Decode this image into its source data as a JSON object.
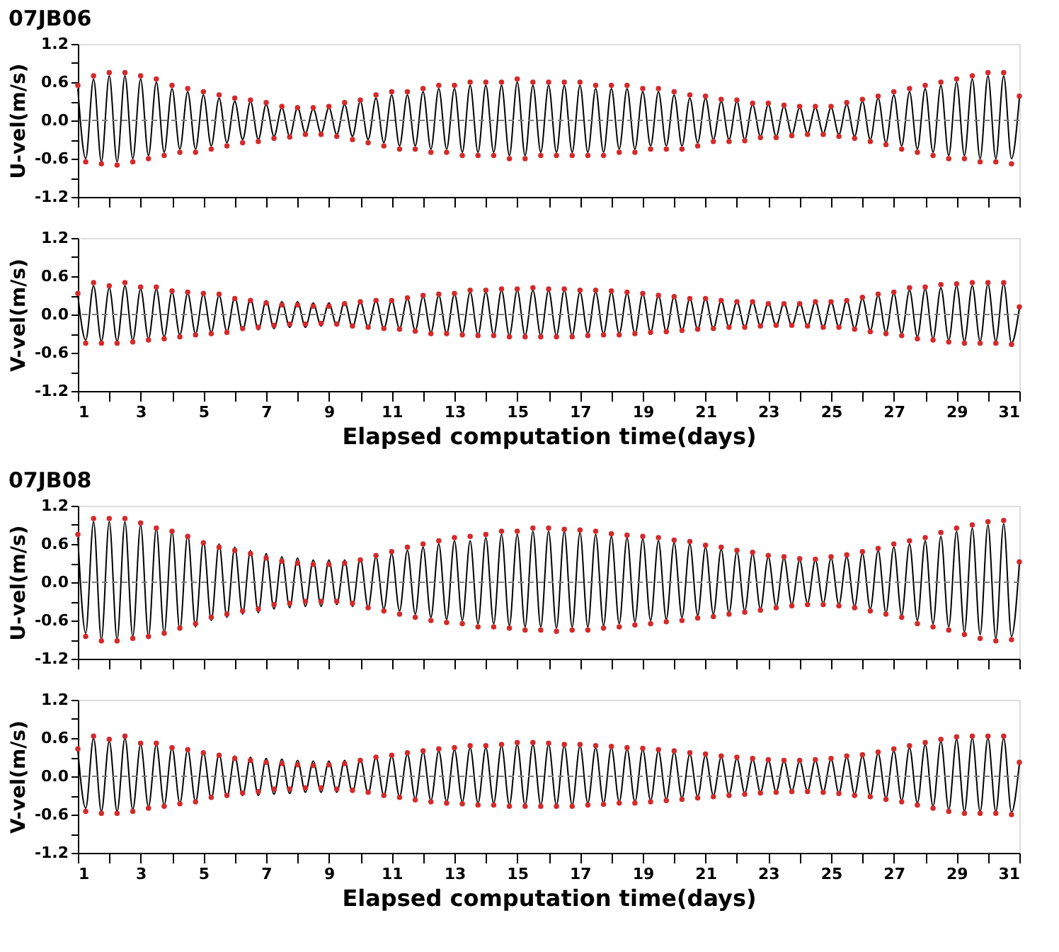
{
  "chart_data": [
    {
      "type": "line",
      "title": "07JB06",
      "ylabel": "U-vel(m/s)",
      "tick_labels": "y",
      "grid": false,
      "x": [
        1,
        1.25,
        1.5,
        1.75,
        2,
        2.25,
        2.5,
        2.75,
        3,
        3.25,
        3.5,
        3.75,
        4,
        4.25,
        4.5,
        4.75,
        5,
        5.25,
        5.5,
        5.75,
        6,
        6.25,
        6.5,
        6.75,
        7,
        7.25,
        7.5,
        7.75,
        8,
        8.25,
        8.5,
        8.75,
        9,
        9.25,
        9.5,
        9.75,
        10,
        10.25,
        10.5,
        10.75,
        11,
        11.25,
        11.5,
        11.75,
        12,
        12.25,
        12.5,
        12.75,
        13,
        13.25,
        13.5,
        13.75,
        14,
        14.25,
        14.5,
        14.75,
        15,
        15.25,
        15.5,
        15.75,
        16,
        16.25,
        16.5,
        16.75,
        17,
        17.25,
        17.5,
        17.75,
        18,
        18.25,
        18.5,
        18.75,
        19,
        19.25,
        19.5,
        19.75,
        20,
        20.25,
        20.5,
        20.75,
        21,
        21.25,
        21.5,
        21.75,
        22,
        22.25,
        22.5,
        22.75,
        23,
        23.25,
        23.5,
        23.75,
        24,
        24.25,
        24.5,
        24.75,
        25,
        25.25,
        25.5,
        25.75,
        26,
        26.25,
        26.5,
        26.75,
        27,
        27.25,
        27.5,
        27.75,
        28,
        28.25,
        28.5,
        28.75,
        29,
        29.25,
        29.5,
        29.75,
        30,
        30.25,
        30.5,
        30.75,
        31
      ],
      "xlim": [
        1,
        31
      ],
      "xticks": [
        1,
        {
          "value": 2,
          "label": null
        },
        3,
        {
          "value": 4,
          "label": null
        },
        5,
        {
          "value": 6,
          "label": null
        },
        7,
        {
          "value": 8,
          "label": null
        },
        9,
        {
          "value": 10,
          "label": null
        },
        11,
        {
          "value": 12,
          "label": null
        },
        13,
        {
          "value": 14,
          "label": null
        },
        15,
        {
          "value": 16,
          "label": null
        },
        17,
        {
          "value": 18,
          "label": null
        },
        19,
        {
          "value": 20,
          "label": null
        },
        21,
        {
          "value": 22,
          "label": null
        },
        23,
        {
          "value": 24,
          "label": null
        },
        25,
        {
          "value": 26,
          "label": null
        },
        27,
        {
          "value": 28,
          "label": null
        },
        29,
        {
          "value": 30,
          "label": null
        },
        31
      ],
      "ylim": [
        -1.2,
        1.2
      ],
      "yticks": [
        -1.2,
        {
          "value": -0.9,
          "label": null
        },
        -0.6,
        {
          "value": -0.3,
          "label": null
        },
        {
          "value": 0,
          "label": "0.0"
        },
        {
          "value": 0.3,
          "label": null
        },
        0.6,
        {
          "value": 0.9,
          "label": null
        },
        1.2
      ],
      "ref_lines": [
        {
          "axis": "y",
          "value": 0,
          "color": "#808080",
          "line_style": "dashed"
        }
      ],
      "series": [
        {
          "color": "#000000",
          "values": [
            0.5,
            -0.6,
            0.65,
            -0.65,
            0.7,
            -0.65,
            0.7,
            -0.6,
            0.65,
            -0.55,
            0.6,
            -0.5,
            0.5,
            -0.45,
            0.45,
            -0.45,
            0.4,
            -0.4,
            0.35,
            -0.35,
            0.3,
            -0.3,
            0.3,
            -0.3,
            0.25,
            -0.25,
            0.2,
            -0.25,
            0.2,
            -0.2,
            0.18,
            -0.2,
            0.2,
            -0.22,
            0.25,
            -0.25,
            0.3,
            -0.3,
            0.35,
            -0.35,
            0.4,
            -0.4,
            0.4,
            -0.4,
            0.45,
            -0.45,
            0.5,
            -0.45,
            0.5,
            -0.5,
            0.55,
            -0.5,
            0.55,
            -0.5,
            0.55,
            -0.55,
            0.6,
            -0.55,
            0.55,
            -0.5,
            0.55,
            -0.5,
            0.55,
            -0.5,
            0.55,
            -0.5,
            0.5,
            -0.5,
            0.5,
            -0.45,
            0.5,
            -0.45,
            0.45,
            -0.4,
            0.45,
            -0.4,
            0.4,
            -0.4,
            0.35,
            -0.35,
            0.35,
            -0.3,
            0.3,
            -0.3,
            0.3,
            -0.3,
            0.25,
            -0.25,
            0.25,
            -0.25,
            0.22,
            -0.22,
            0.2,
            -0.2,
            0.2,
            -0.2,
            0.2,
            -0.22,
            0.25,
            -0.25,
            0.3,
            -0.3,
            0.35,
            -0.35,
            0.4,
            -0.4,
            0.45,
            -0.45,
            0.5,
            -0.5,
            0.55,
            -0.55,
            0.6,
            -0.55,
            0.65,
            -0.6,
            0.7,
            -0.6,
            0.7,
            -0.6,
            0.35
          ]
        },
        {
          "type": "scatter",
          "color": "#d42a2a",
          "values": [
            0.55,
            -0.65,
            0.7,
            -0.68,
            0.75,
            -0.7,
            0.75,
            -0.65,
            0.7,
            -0.6,
            0.65,
            -0.55,
            0.55,
            -0.5,
            0.5,
            -0.5,
            0.45,
            -0.45,
            0.4,
            -0.4,
            0.35,
            -0.35,
            0.32,
            -0.33,
            0.28,
            -0.28,
            0.22,
            -0.26,
            0.2,
            -0.22,
            0.2,
            -0.22,
            0.22,
            -0.25,
            0.28,
            -0.3,
            0.32,
            -0.35,
            0.4,
            -0.4,
            0.45,
            -0.45,
            0.45,
            -0.45,
            0.5,
            -0.5,
            0.55,
            -0.5,
            0.55,
            -0.55,
            0.6,
            -0.55,
            0.6,
            -0.55,
            0.6,
            -0.6,
            0.65,
            -0.6,
            0.6,
            -0.55,
            0.6,
            -0.55,
            0.6,
            -0.55,
            0.6,
            -0.55,
            0.55,
            -0.55,
            0.55,
            -0.5,
            0.55,
            -0.5,
            0.5,
            -0.45,
            0.5,
            -0.45,
            0.45,
            -0.45,
            0.4,
            -0.4,
            0.38,
            -0.33,
            0.33,
            -0.33,
            0.32,
            -0.32,
            0.27,
            -0.27,
            0.27,
            -0.27,
            0.24,
            -0.24,
            0.22,
            -0.22,
            0.22,
            -0.22,
            0.22,
            -0.25,
            0.28,
            -0.28,
            0.33,
            -0.33,
            0.38,
            -0.38,
            0.45,
            -0.45,
            0.5,
            -0.5,
            0.55,
            -0.55,
            0.6,
            -0.6,
            0.65,
            -0.6,
            0.7,
            -0.65,
            0.75,
            -0.65,
            0.75,
            -0.68,
            0.38
          ]
        }
      ]
    },
    {
      "type": "line",
      "xlabel": "Elapsed computation time(days)",
      "ylabel": "V-vel(m/s)",
      "grid": false,
      "x": [
        1,
        1.25,
        1.5,
        1.75,
        2,
        2.25,
        2.5,
        2.75,
        3,
        3.25,
        3.5,
        3.75,
        4,
        4.25,
        4.5,
        4.75,
        5,
        5.25,
        5.5,
        5.75,
        6,
        6.25,
        6.5,
        6.75,
        7,
        7.25,
        7.5,
        7.75,
        8,
        8.25,
        8.5,
        8.75,
        9,
        9.25,
        9.5,
        9.75,
        10,
        10.25,
        10.5,
        10.75,
        11,
        11.25,
        11.5,
        11.75,
        12,
        12.25,
        12.5,
        12.75,
        13,
        13.25,
        13.5,
        13.75,
        14,
        14.25,
        14.5,
        14.75,
        15,
        15.25,
        15.5,
        15.75,
        16,
        16.25,
        16.5,
        16.75,
        17,
        17.25,
        17.5,
        17.75,
        18,
        18.25,
        18.5,
        18.75,
        19,
        19.25,
        19.5,
        19.75,
        20,
        20.25,
        20.5,
        20.75,
        21,
        21.25,
        21.5,
        21.75,
        22,
        22.25,
        22.5,
        22.75,
        23,
        23.25,
        23.5,
        23.75,
        24,
        24.25,
        24.5,
        24.75,
        25,
        25.25,
        25.5,
        25.75,
        26,
        26.25,
        26.5,
        26.75,
        27,
        27.25,
        27.5,
        27.75,
        28,
        28.25,
        28.5,
        28.75,
        29,
        29.25,
        29.5,
        29.75,
        30,
        30.25,
        30.5,
        30.75,
        31
      ],
      "xlim": [
        1,
        31
      ],
      "xticks": [
        1,
        {
          "value": 2,
          "label": null
        },
        3,
        {
          "value": 4,
          "label": null
        },
        5,
        {
          "value": 6,
          "label": null
        },
        7,
        {
          "value": 8,
          "label": null
        },
        9,
        {
          "value": 10,
          "label": null
        },
        11,
        {
          "value": 12,
          "label": null
        },
        13,
        {
          "value": 14,
          "label": null
        },
        15,
        {
          "value": 16,
          "label": null
        },
        17,
        {
          "value": 18,
          "label": null
        },
        19,
        {
          "value": 20,
          "label": null
        },
        21,
        {
          "value": 22,
          "label": null
        },
        23,
        {
          "value": 24,
          "label": null
        },
        25,
        {
          "value": 26,
          "label": null
        },
        27,
        {
          "value": 28,
          "label": null
        },
        29,
        {
          "value": 30,
          "label": null
        },
        31
      ],
      "ylim": [
        -1.2,
        1.2
      ],
      "yticks": [
        -1.2,
        {
          "value": -0.9,
          "label": null
        },
        -0.6,
        {
          "value": -0.3,
          "label": null
        },
        {
          "value": 0,
          "label": "0.0"
        },
        {
          "value": 0.3,
          "label": null
        },
        0.6,
        {
          "value": 0.9,
          "label": null
        },
        1.2
      ],
      "ref_lines": [
        {
          "axis": "y",
          "value": 0,
          "color": "#808080",
          "line_style": "dashed"
        }
      ],
      "series": [
        {
          "color": "#000000",
          "values": [
            0.3,
            -0.4,
            0.45,
            -0.42,
            0.42,
            -0.42,
            0.45,
            -0.4,
            0.4,
            -0.38,
            0.4,
            -0.35,
            0.35,
            -0.32,
            0.33,
            -0.3,
            0.32,
            -0.28,
            0.3,
            -0.27,
            0.27,
            -0.25,
            0.25,
            -0.24,
            0.22,
            -0.22,
            0.2,
            -0.2,
            0.2,
            -0.2,
            0.18,
            -0.18,
            0.18,
            -0.18,
            0.2,
            -0.2,
            0.2,
            -0.2,
            0.22,
            -0.22,
            0.22,
            -0.22,
            0.25,
            -0.25,
            0.28,
            -0.28,
            0.3,
            -0.3,
            0.32,
            -0.3,
            0.35,
            -0.32,
            0.35,
            -0.32,
            0.38,
            -0.33,
            0.38,
            -0.33,
            0.38,
            -0.33,
            0.38,
            -0.33,
            0.38,
            -0.33,
            0.35,
            -0.3,
            0.35,
            -0.3,
            0.35,
            -0.3,
            0.33,
            -0.3,
            0.32,
            -0.28,
            0.3,
            -0.27,
            0.28,
            -0.25,
            0.25,
            -0.23,
            0.25,
            -0.22,
            0.22,
            -0.2,
            0.2,
            -0.2,
            0.2,
            -0.18,
            0.18,
            -0.18,
            0.18,
            -0.18,
            0.18,
            -0.18,
            0.2,
            -0.2,
            0.2,
            -0.2,
            0.22,
            -0.22,
            0.25,
            -0.25,
            0.3,
            -0.28,
            0.33,
            -0.3,
            0.38,
            -0.35,
            0.4,
            -0.38,
            0.42,
            -0.4,
            0.45,
            -0.42,
            0.45,
            -0.42,
            0.48,
            -0.42,
            0.48,
            -0.45,
            0.1
          ]
        },
        {
          "type": "scatter",
          "color": "#d42a2a",
          "values": [
            0.33,
            -0.45,
            0.5,
            -0.45,
            0.45,
            -0.45,
            0.5,
            -0.43,
            0.43,
            -0.4,
            0.43,
            -0.38,
            0.37,
            -0.35,
            0.35,
            -0.32,
            0.33,
            -0.3,
            0.32,
            -0.28,
            0.25,
            -0.22,
            0.22,
            -0.2,
            0.18,
            -0.17,
            0.15,
            -0.15,
            0.15,
            -0.15,
            0.13,
            -0.14,
            0.13,
            -0.15,
            0.17,
            -0.18,
            0.2,
            -0.2,
            0.22,
            -0.22,
            0.22,
            -0.23,
            0.26,
            -0.26,
            0.3,
            -0.3,
            0.32,
            -0.3,
            0.33,
            -0.32,
            0.38,
            -0.33,
            0.38,
            -0.33,
            0.4,
            -0.35,
            0.4,
            -0.35,
            0.42,
            -0.35,
            0.4,
            -0.35,
            0.4,
            -0.35,
            0.38,
            -0.33,
            0.38,
            -0.32,
            0.37,
            -0.32,
            0.35,
            -0.3,
            0.33,
            -0.28,
            0.3,
            -0.27,
            0.28,
            -0.25,
            0.25,
            -0.23,
            0.25,
            -0.22,
            0.22,
            -0.2,
            0.2,
            -0.2,
            0.2,
            -0.18,
            0.17,
            -0.17,
            0.17,
            -0.17,
            0.17,
            -0.18,
            0.2,
            -0.2,
            0.2,
            -0.2,
            0.22,
            -0.23,
            0.27,
            -0.27,
            0.32,
            -0.3,
            0.35,
            -0.33,
            0.42,
            -0.38,
            0.43,
            -0.4,
            0.47,
            -0.43,
            0.48,
            -0.45,
            0.5,
            -0.45,
            0.5,
            -0.45,
            0.5,
            -0.47,
            0.12
          ]
        }
      ]
    },
    {
      "type": "line",
      "title": "07JB08",
      "ylabel": "U-vel(m/s)",
      "tick_labels": "y",
      "grid": false,
      "x": [
        1,
        1.25,
        1.5,
        1.75,
        2,
        2.25,
        2.5,
        2.75,
        3,
        3.25,
        3.5,
        3.75,
        4,
        4.25,
        4.5,
        4.75,
        5,
        5.25,
        5.5,
        5.75,
        6,
        6.25,
        6.5,
        6.75,
        7,
        7.25,
        7.5,
        7.75,
        8,
        8.25,
        8.5,
        8.75,
        9,
        9.25,
        9.5,
        9.75,
        10,
        10.25,
        10.5,
        10.75,
        11,
        11.25,
        11.5,
        11.75,
        12,
        12.25,
        12.5,
        12.75,
        13,
        13.25,
        13.5,
        13.75,
        14,
        14.25,
        14.5,
        14.75,
        15,
        15.25,
        15.5,
        15.75,
        16,
        16.25,
        16.5,
        16.75,
        17,
        17.25,
        17.5,
        17.75,
        18,
        18.25,
        18.5,
        18.75,
        19,
        19.25,
        19.5,
        19.75,
        20,
        20.25,
        20.5,
        20.75,
        21,
        21.25,
        21.5,
        21.75,
        22,
        22.25,
        22.5,
        22.75,
        23,
        23.25,
        23.5,
        23.75,
        24,
        24.25,
        24.5,
        24.75,
        25,
        25.25,
        25.5,
        25.75,
        26,
        26.25,
        26.5,
        26.75,
        27,
        27.25,
        27.5,
        27.75,
        28,
        28.25,
        28.5,
        28.75,
        29,
        29.25,
        29.5,
        29.75,
        30,
        30.25,
        30.5,
        30.75,
        31
      ],
      "xlim": [
        1,
        31
      ],
      "xticks": [
        1,
        {
          "value": 2,
          "label": null
        },
        3,
        {
          "value": 4,
          "label": null
        },
        5,
        {
          "value": 6,
          "label": null
        },
        7,
        {
          "value": 8,
          "label": null
        },
        9,
        {
          "value": 10,
          "label": null
        },
        11,
        {
          "value": 12,
          "label": null
        },
        13,
        {
          "value": 14,
          "label": null
        },
        15,
        {
          "value": 16,
          "label": null
        },
        17,
        {
          "value": 18,
          "label": null
        },
        19,
        {
          "value": 20,
          "label": null
        },
        21,
        {
          "value": 22,
          "label": null
        },
        23,
        {
          "value": 24,
          "label": null
        },
        25,
        {
          "value": 26,
          "label": null
        },
        27,
        {
          "value": 28,
          "label": null
        },
        29,
        {
          "value": 30,
          "label": null
        },
        31
      ],
      "ylim": [
        -1.2,
        1.2
      ],
      "yticks": [
        -1.2,
        {
          "value": -0.9,
          "label": null
        },
        -0.6,
        {
          "value": -0.3,
          "label": null
        },
        {
          "value": 0,
          "label": "0.0"
        },
        {
          "value": 0.3,
          "label": null
        },
        0.6,
        {
          "value": 0.9,
          "label": null
        },
        1.2
      ],
      "ref_lines": [
        {
          "axis": "y",
          "value": 0,
          "color": "#808080",
          "line_style": "dashed"
        }
      ],
      "series": [
        {
          "color": "#000000",
          "values": [
            0.7,
            -0.8,
            0.95,
            -0.9,
            0.95,
            -0.9,
            0.95,
            -0.85,
            0.9,
            -0.85,
            0.85,
            -0.8,
            0.8,
            -0.75,
            0.75,
            -0.7,
            0.65,
            -0.6,
            0.6,
            -0.55,
            0.55,
            -0.5,
            0.5,
            -0.48,
            0.45,
            -0.42,
            0.4,
            -0.4,
            0.38,
            -0.38,
            0.35,
            -0.38,
            0.35,
            -0.35,
            0.35,
            -0.38,
            0.38,
            -0.4,
            0.4,
            -0.42,
            0.45,
            -0.45,
            0.5,
            -0.5,
            0.55,
            -0.55,
            0.6,
            -0.58,
            0.65,
            -0.6,
            0.65,
            -0.65,
            0.7,
            -0.65,
            0.75,
            -0.68,
            0.75,
            -0.7,
            0.8,
            -0.7,
            0.8,
            -0.72,
            0.8,
            -0.7,
            0.78,
            -0.7,
            0.75,
            -0.68,
            0.72,
            -0.65,
            0.7,
            -0.62,
            0.68,
            -0.6,
            0.65,
            -0.58,
            0.62,
            -0.55,
            0.6,
            -0.52,
            0.55,
            -0.5,
            0.52,
            -0.48,
            0.48,
            -0.45,
            0.45,
            -0.42,
            0.4,
            -0.38,
            0.38,
            -0.35,
            0.35,
            -0.33,
            0.35,
            -0.33,
            0.38,
            -0.35,
            0.4,
            -0.38,
            0.45,
            -0.42,
            0.5,
            -0.48,
            0.55,
            -0.52,
            0.6,
            -0.6,
            0.65,
            -0.65,
            0.72,
            -0.7,
            0.8,
            -0.78,
            0.85,
            -0.82,
            0.9,
            -0.88,
            0.92,
            -0.85,
            0.3
          ]
        },
        {
          "type": "scatter",
          "color": "#d42a2a",
          "values": [
            0.75,
            -0.85,
            1.0,
            -0.92,
            1.0,
            -0.92,
            1.0,
            -0.88,
            0.93,
            -0.85,
            0.85,
            -0.8,
            0.8,
            -0.72,
            0.72,
            -0.65,
            0.62,
            -0.55,
            0.55,
            -0.5,
            0.5,
            -0.45,
            0.45,
            -0.42,
            0.38,
            -0.35,
            0.33,
            -0.33,
            0.3,
            -0.3,
            0.28,
            -0.3,
            0.28,
            -0.3,
            0.3,
            -0.33,
            0.35,
            -0.4,
            0.42,
            -0.45,
            0.48,
            -0.5,
            0.55,
            -0.55,
            0.6,
            -0.6,
            0.65,
            -0.63,
            0.7,
            -0.65,
            0.72,
            -0.7,
            0.75,
            -0.7,
            0.8,
            -0.72,
            0.8,
            -0.75,
            0.85,
            -0.75,
            0.85,
            -0.77,
            0.83,
            -0.75,
            0.82,
            -0.75,
            0.8,
            -0.72,
            0.76,
            -0.7,
            0.74,
            -0.67,
            0.72,
            -0.65,
            0.7,
            -0.62,
            0.66,
            -0.6,
            0.64,
            -0.56,
            0.58,
            -0.54,
            0.55,
            -0.5,
            0.5,
            -0.47,
            0.47,
            -0.44,
            0.42,
            -0.4,
            0.4,
            -0.37,
            0.37,
            -0.35,
            0.36,
            -0.35,
            0.4,
            -0.37,
            0.43,
            -0.4,
            0.48,
            -0.45,
            0.53,
            -0.5,
            0.6,
            -0.55,
            0.65,
            -0.65,
            0.7,
            -0.7,
            0.78,
            -0.75,
            0.85,
            -0.82,
            0.9,
            -0.88,
            0.95,
            -0.92,
            0.97,
            -0.9,
            0.32
          ]
        }
      ]
    },
    {
      "type": "line",
      "xlabel": "Elapsed computation time(days)",
      "ylabel": "V-vel(m/s)",
      "grid": false,
      "x": [
        1,
        1.25,
        1.5,
        1.75,
        2,
        2.25,
        2.5,
        2.75,
        3,
        3.25,
        3.5,
        3.75,
        4,
        4.25,
        4.5,
        4.75,
        5,
        5.25,
        5.5,
        5.75,
        6,
        6.25,
        6.5,
        6.75,
        7,
        7.25,
        7.5,
        7.75,
        8,
        8.25,
        8.5,
        8.75,
        9,
        9.25,
        9.5,
        9.75,
        10,
        10.25,
        10.5,
        10.75,
        11,
        11.25,
        11.5,
        11.75,
        12,
        12.25,
        12.5,
        12.75,
        13,
        13.25,
        13.5,
        13.75,
        14,
        14.25,
        14.5,
        14.75,
        15,
        15.25,
        15.5,
        15.75,
        16,
        16.25,
        16.5,
        16.75,
        17,
        17.25,
        17.5,
        17.75,
        18,
        18.25,
        18.5,
        18.75,
        19,
        19.25,
        19.5,
        19.75,
        20,
        20.25,
        20.5,
        20.75,
        21,
        21.25,
        21.5,
        21.75,
        22,
        22.25,
        22.5,
        22.75,
        23,
        23.25,
        23.5,
        23.75,
        24,
        24.25,
        24.5,
        24.75,
        25,
        25.25,
        25.5,
        25.75,
        26,
        26.25,
        26.5,
        26.75,
        27,
        27.25,
        27.5,
        27.75,
        28,
        28.25,
        28.5,
        28.75,
        29,
        29.25,
        29.5,
        29.75,
        30,
        30.25,
        30.5,
        30.75,
        31
      ],
      "xlim": [
        1,
        31
      ],
      "xticks": [
        1,
        {
          "value": 2,
          "label": null
        },
        3,
        {
          "value": 4,
          "label": null
        },
        5,
        {
          "value": 6,
          "label": null
        },
        7,
        {
          "value": 8,
          "label": null
        },
        9,
        {
          "value": 10,
          "label": null
        },
        11,
        {
          "value": 12,
          "label": null
        },
        13,
        {
          "value": 14,
          "label": null
        },
        15,
        {
          "value": 16,
          "label": null
        },
        17,
        {
          "value": 18,
          "label": null
        },
        19,
        {
          "value": 20,
          "label": null
        },
        21,
        {
          "value": 22,
          "label": null
        },
        23,
        {
          "value": 24,
          "label": null
        },
        25,
        {
          "value": 26,
          "label": null
        },
        27,
        {
          "value": 28,
          "label": null
        },
        29,
        {
          "value": 30,
          "label": null
        },
        31
      ],
      "ylim": [
        -1.2,
        1.2
      ],
      "yticks": [
        -1.2,
        {
          "value": -0.9,
          "label": null
        },
        -0.6,
        {
          "value": -0.3,
          "label": null
        },
        {
          "value": 0,
          "label": "0.0"
        },
        {
          "value": 0.3,
          "label": null
        },
        0.6,
        {
          "value": 0.9,
          "label": null
        },
        1.2
      ],
      "ref_lines": [
        {
          "axis": "y",
          "value": 0,
          "color": "#808080",
          "line_style": "dashed"
        }
      ],
      "series": [
        {
          "color": "#000000",
          "values": [
            0.4,
            -0.5,
            0.6,
            -0.55,
            0.55,
            -0.55,
            0.6,
            -0.52,
            0.5,
            -0.48,
            0.5,
            -0.45,
            0.45,
            -0.42,
            0.42,
            -0.4,
            0.38,
            -0.35,
            0.35,
            -0.33,
            0.32,
            -0.3,
            0.3,
            -0.3,
            0.28,
            -0.28,
            0.27,
            -0.27,
            0.25,
            -0.25,
            0.24,
            -0.25,
            0.24,
            -0.25,
            0.25,
            -0.25,
            0.27,
            -0.27,
            0.3,
            -0.3,
            0.32,
            -0.32,
            0.35,
            -0.35,
            0.38,
            -0.38,
            0.4,
            -0.4,
            0.42,
            -0.4,
            0.45,
            -0.42,
            0.45,
            -0.42,
            0.48,
            -0.45,
            0.5,
            -0.45,
            0.5,
            -0.45,
            0.5,
            -0.45,
            0.48,
            -0.45,
            0.48,
            -0.42,
            0.45,
            -0.42,
            0.45,
            -0.4,
            0.43,
            -0.4,
            0.42,
            -0.38,
            0.4,
            -0.36,
            0.38,
            -0.34,
            0.35,
            -0.32,
            0.33,
            -0.3,
            0.3,
            -0.28,
            0.28,
            -0.26,
            0.27,
            -0.25,
            0.25,
            -0.24,
            0.24,
            -0.23,
            0.24,
            -0.23,
            0.25,
            -0.24,
            0.27,
            -0.26,
            0.3,
            -0.28,
            0.32,
            -0.3,
            0.36,
            -0.34,
            0.4,
            -0.38,
            0.45,
            -0.42,
            0.5,
            -0.47,
            0.55,
            -0.52,
            0.58,
            -0.55,
            0.6,
            -0.55,
            0.6,
            -0.55,
            0.6,
            -0.56,
            0.2
          ]
        },
        {
          "type": "scatter",
          "color": "#d42a2a",
          "values": [
            0.43,
            -0.55,
            0.63,
            -0.58,
            0.58,
            -0.58,
            0.63,
            -0.55,
            0.52,
            -0.5,
            0.52,
            -0.47,
            0.45,
            -0.43,
            0.42,
            -0.4,
            0.37,
            -0.33,
            0.33,
            -0.3,
            0.28,
            -0.26,
            0.25,
            -0.24,
            0.22,
            -0.2,
            0.2,
            -0.2,
            0.18,
            -0.18,
            0.17,
            -0.18,
            0.18,
            -0.2,
            0.2,
            -0.22,
            0.25,
            -0.25,
            0.3,
            -0.3,
            0.33,
            -0.33,
            0.37,
            -0.37,
            0.4,
            -0.4,
            0.43,
            -0.42,
            0.45,
            -0.43,
            0.48,
            -0.45,
            0.48,
            -0.45,
            0.5,
            -0.47,
            0.53,
            -0.47,
            0.53,
            -0.47,
            0.52,
            -0.47,
            0.5,
            -0.47,
            0.5,
            -0.45,
            0.48,
            -0.44,
            0.47,
            -0.42,
            0.45,
            -0.42,
            0.44,
            -0.4,
            0.42,
            -0.38,
            0.4,
            -0.36,
            0.37,
            -0.34,
            0.35,
            -0.32,
            0.32,
            -0.3,
            0.3,
            -0.28,
            0.28,
            -0.26,
            0.26,
            -0.25,
            0.25,
            -0.24,
            0.25,
            -0.24,
            0.26,
            -0.25,
            0.28,
            -0.27,
            0.32,
            -0.3,
            0.34,
            -0.32,
            0.38,
            -0.36,
            0.43,
            -0.4,
            0.48,
            -0.45,
            0.53,
            -0.5,
            0.58,
            -0.55,
            0.62,
            -0.58,
            0.63,
            -0.58,
            0.63,
            -0.58,
            0.63,
            -0.6,
            0.22
          ]
        }
      ]
    }
  ]
}
